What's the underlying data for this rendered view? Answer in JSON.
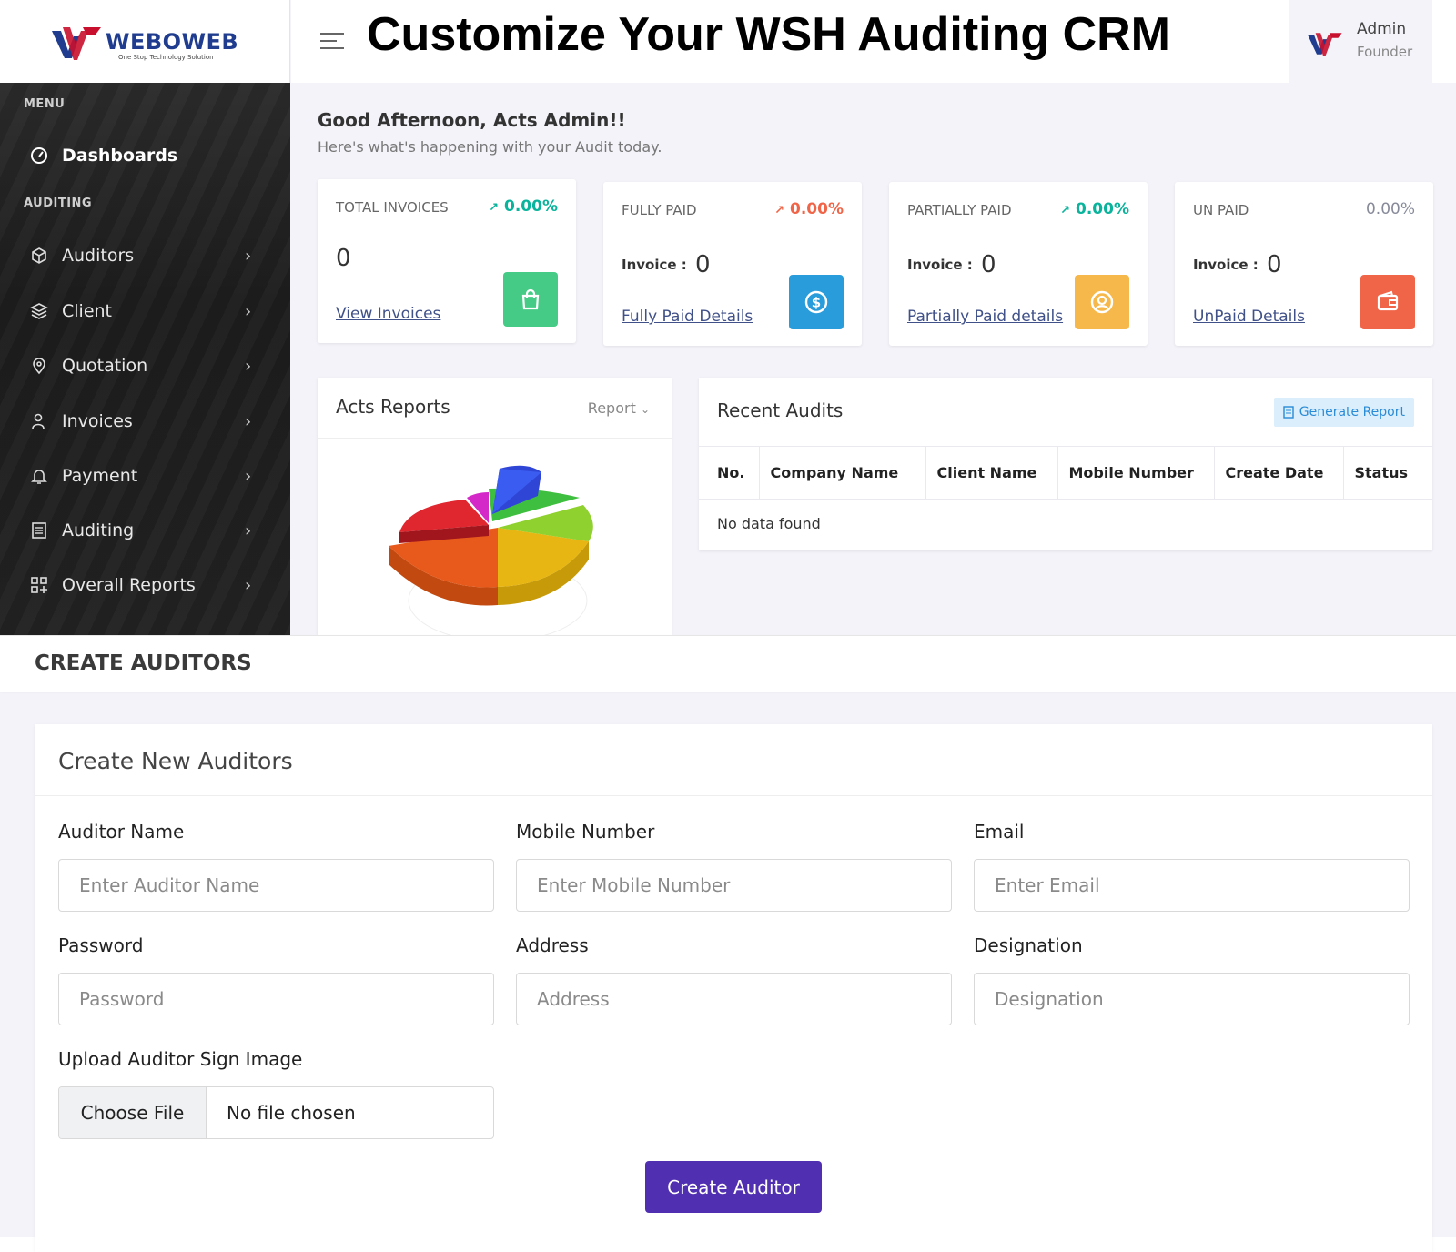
{
  "brand": {
    "name": "WEBOWEB",
    "tagline": "One Stop Technology Solution"
  },
  "header": {
    "title": "Customize Your WSH Auditing CRM"
  },
  "user": {
    "name": "Admin",
    "role": "Founder"
  },
  "sidebar": {
    "menu_label": "MENU",
    "auditing_label": "AUDITING",
    "dashboard": "Dashboards",
    "items": [
      {
        "label": "Auditors",
        "icon": "cube-icon"
      },
      {
        "label": "Client",
        "icon": "layers-icon"
      },
      {
        "label": "Quotation",
        "icon": "map-pin-icon"
      },
      {
        "label": "Invoices",
        "icon": "user-edit-icon"
      },
      {
        "label": "Payment",
        "icon": "bell-icon"
      },
      {
        "label": "Auditing",
        "icon": "document-icon"
      },
      {
        "label": "Overall Reports",
        "icon": "grid-plus-icon"
      }
    ]
  },
  "dashboard": {
    "greeting": "Good Afternoon, Acts Admin!!",
    "subtitle": "Here's what's happening with your Audit today.",
    "cards": [
      {
        "title": "TOTAL INVOICES",
        "pct": "0.00%",
        "trend": "↗",
        "pct_color": "#0ab39c",
        "value": "0",
        "link": "View Invoices",
        "icon": "shopping-bag-icon",
        "icon_bg": "#45cb85"
      },
      {
        "title": "FULLY PAID",
        "pct": "0.00%",
        "trend": "↗",
        "pct_color": "#f06548",
        "invoice_label": "Invoice :",
        "value": "0",
        "link": "Fully Paid Details",
        "icon": "dollar-circle-icon",
        "icon_bg": "#299cdb"
      },
      {
        "title": "PARTIALLY PAID",
        "pct": "0.00%",
        "trend": "↗",
        "pct_color": "#0ab39c",
        "invoice_label": "Invoice :",
        "value": "0",
        "link": "Partially Paid details",
        "icon": "user-circle-icon",
        "icon_bg": "#f7b84b"
      },
      {
        "title": "UN PAID",
        "pct": "0.00%",
        "trend": "",
        "pct_color": "#878a99",
        "invoice_label": "Invoice :",
        "value": "0",
        "link": "UnPaid Details",
        "icon": "wallet-icon",
        "icon_bg": "#f06548"
      }
    ],
    "reports": {
      "title": "Acts Reports",
      "dropdown": "Report"
    },
    "recent_audits": {
      "title": "Recent Audits",
      "button": "Generate Report",
      "columns": [
        "No.",
        "Company Name",
        "Client Name",
        "Mobile Number",
        "Create Date",
        "Status"
      ],
      "empty": "No data found"
    }
  },
  "form_page": {
    "page_title": "CREATE AUDITORS",
    "card_title": "Create New Auditors",
    "fields": {
      "name": {
        "label": "Auditor Name",
        "placeholder": "Enter Auditor Name"
      },
      "mobile": {
        "label": "Mobile Number",
        "placeholder": "Enter Mobile Number"
      },
      "email": {
        "label": "Email",
        "placeholder": "Enter Email"
      },
      "password": {
        "label": "Password",
        "placeholder": "Password"
      },
      "address": {
        "label": "Address",
        "placeholder": "Address"
      },
      "designation": {
        "label": "Designation",
        "placeholder": "Designation"
      },
      "sign": {
        "label": "Upload Auditor Sign Image",
        "button": "Choose File",
        "status": "No file chosen"
      }
    },
    "submit": "Create Auditor"
  }
}
